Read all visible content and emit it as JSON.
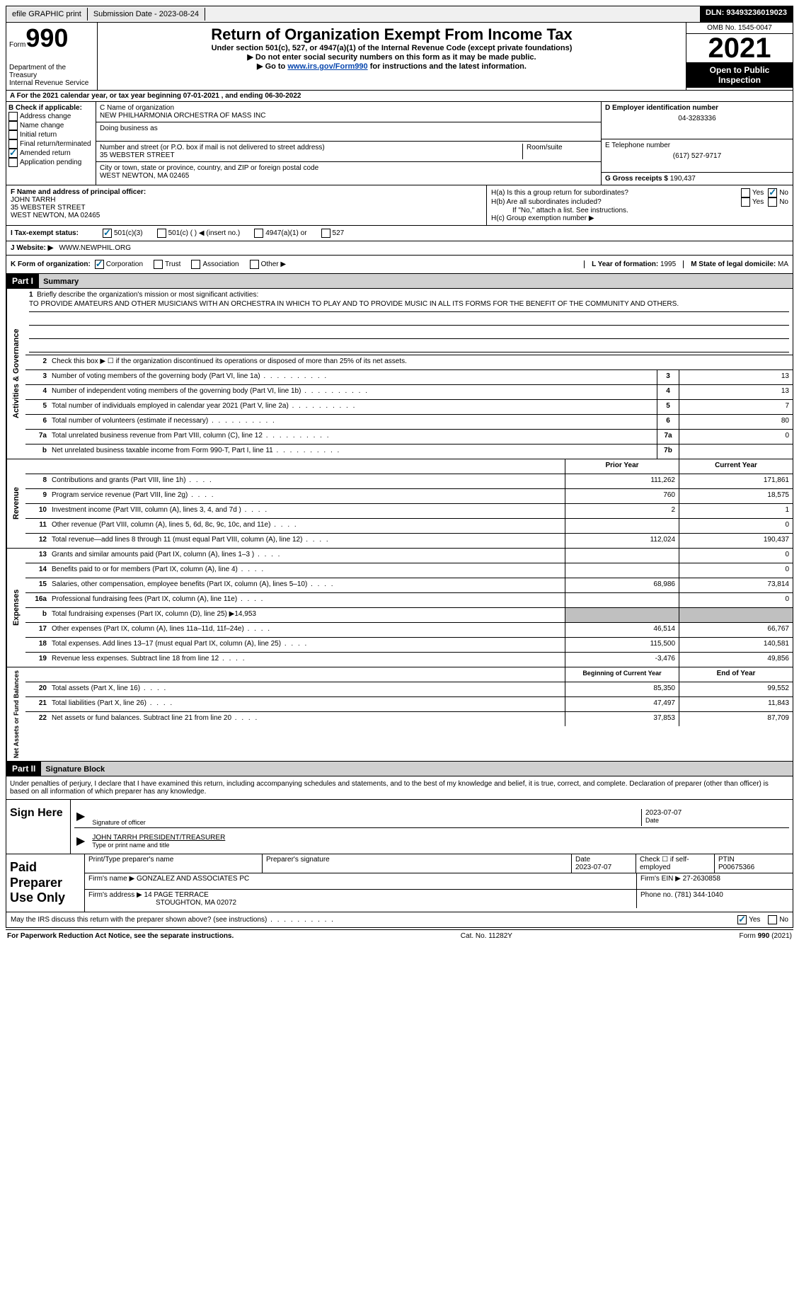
{
  "topbar": {
    "efile": "efile GRAPHIC print",
    "submission_label": "Submission Date - 2023-08-24",
    "dln": "DLN: 93493236019023"
  },
  "header": {
    "form_word": "Form",
    "form_num": "990",
    "dept": "Department of the Treasury",
    "irs": "Internal Revenue Service",
    "title": "Return of Organization Exempt From Income Tax",
    "subtitle": "Under section 501(c), 527, or 4947(a)(1) of the Internal Revenue Code (except private foundations)",
    "note1": "▶ Do not enter social security numbers on this form as it may be made public.",
    "note2_pre": "▶ Go to ",
    "note2_link": "www.irs.gov/Form990",
    "note2_post": " for instructions and the latest information.",
    "omb": "OMB No. 1545-0047",
    "year": "2021",
    "open": "Open to Public Inspection"
  },
  "line_a": "A For the 2021 calendar year, or tax year beginning 07-01-2021    , and ending 06-30-2022",
  "col_b": {
    "header": "B Check if applicable:",
    "items": [
      "Address change",
      "Name change",
      "Initial return",
      "Final return/terminated",
      "Amended return",
      "Application pending"
    ],
    "checked_idx": 4
  },
  "col_c": {
    "name_label": "C Name of organization",
    "name": "NEW PHILHARMONIA ORCHESTRA OF MASS INC",
    "dba_label": "Doing business as",
    "addr_label": "Number and street (or P.O. box if mail is not delivered to street address)",
    "addr": "35 WEBSTER STREET",
    "room_label": "Room/suite",
    "city_label": "City or town, state or province, country, and ZIP or foreign postal code",
    "city": "WEST NEWTON, MA  02465"
  },
  "col_d": {
    "ein_label": "D Employer identification number",
    "ein": "04-3283336",
    "phone_label": "E Telephone number",
    "phone": "(617) 527-9717",
    "gross_label": "G Gross receipts $",
    "gross": "190,437"
  },
  "fgh": {
    "f_label": "F Name and address of principal officer:",
    "f_name": "JOHN TARRH",
    "f_addr1": "35 WEBSTER STREET",
    "f_addr2": "WEST NEWTON, MA  02465",
    "ha": "H(a)  Is this a group return for subordinates?",
    "hb": "H(b)  Are all subordinates included?",
    "hb_note": "If \"No,\" attach a list. See instructions.",
    "hc": "H(c)  Group exemption number ▶",
    "yes": "Yes",
    "no": "No"
  },
  "line_i": {
    "label": "I   Tax-exempt status:",
    "opts": [
      "501(c)(3)",
      "501(c) (  ) ◀ (insert no.)",
      "4947(a)(1) or",
      "527"
    ]
  },
  "line_j": {
    "label": "J   Website: ▶",
    "value": "WWW.NEWPHIL.ORG"
  },
  "line_k": {
    "label": "K Form of organization:",
    "opts": [
      "Corporation",
      "Trust",
      "Association",
      "Other ▶"
    ],
    "l_label": "L Year of formation: ",
    "l_val": "1995",
    "m_label": "M State of legal domicile: ",
    "m_val": "MA"
  },
  "part1": {
    "tag": "Part I",
    "title": "Summary"
  },
  "mission": {
    "num": "1",
    "label": "Briefly describe the organization's mission or most significant activities:",
    "text": "TO PROVIDE AMATEURS AND OTHER MUSICIANS WITH AN ORCHESTRA IN WHICH TO PLAY AND TO PROVIDE MUSIC IN ALL ITS FORMS FOR THE BENEFIT OF THE COMMUNITY AND OTHERS."
  },
  "line2": "Check this box ▶ ☐  if the organization discontinued its operations or disposed of more than 25% of its net assets.",
  "sides": {
    "gov": "Activities & Governance",
    "rev": "Revenue",
    "exp": "Expenses",
    "net": "Net Assets or Fund Balances"
  },
  "gov_lines": [
    {
      "n": "3",
      "d": "Number of voting members of the governing body (Part VI, line 1a)",
      "b": "3",
      "v": "13"
    },
    {
      "n": "4",
      "d": "Number of independent voting members of the governing body (Part VI, line 1b)",
      "b": "4",
      "v": "13"
    },
    {
      "n": "5",
      "d": "Total number of individuals employed in calendar year 2021 (Part V, line 2a)",
      "b": "5",
      "v": "7"
    },
    {
      "n": "6",
      "d": "Total number of volunteers (estimate if necessary)",
      "b": "6",
      "v": "80"
    },
    {
      "n": "7a",
      "d": "Total unrelated business revenue from Part VIII, column (C), line 12",
      "b": "7a",
      "v": "0"
    },
    {
      "n": "b",
      "d": "Net unrelated business taxable income from Form 990-T, Part I, line 11",
      "b": "7b",
      "v": ""
    }
  ],
  "col_headers": {
    "prior": "Prior Year",
    "current": "Current Year"
  },
  "rev_lines": [
    {
      "n": "8",
      "d": "Contributions and grants (Part VIII, line 1h)",
      "p": "111,262",
      "c": "171,861"
    },
    {
      "n": "9",
      "d": "Program service revenue (Part VIII, line 2g)",
      "p": "760",
      "c": "18,575"
    },
    {
      "n": "10",
      "d": "Investment income (Part VIII, column (A), lines 3, 4, and 7d )",
      "p": "2",
      "c": "1"
    },
    {
      "n": "11",
      "d": "Other revenue (Part VIII, column (A), lines 5, 6d, 8c, 9c, 10c, and 11e)",
      "p": "",
      "c": "0"
    },
    {
      "n": "12",
      "d": "Total revenue—add lines 8 through 11 (must equal Part VIII, column (A), line 12)",
      "p": "112,024",
      "c": "190,437"
    }
  ],
  "exp_lines": [
    {
      "n": "13",
      "d": "Grants and similar amounts paid (Part IX, column (A), lines 1–3 )",
      "p": "",
      "c": "0"
    },
    {
      "n": "14",
      "d": "Benefits paid to or for members (Part IX, column (A), line 4)",
      "p": "",
      "c": "0"
    },
    {
      "n": "15",
      "d": "Salaries, other compensation, employee benefits (Part IX, column (A), lines 5–10)",
      "p": "68,986",
      "c": "73,814"
    },
    {
      "n": "16a",
      "d": "Professional fundraising fees (Part IX, column (A), line 11e)",
      "p": "",
      "c": "0"
    },
    {
      "n": "b",
      "d": "Total fundraising expenses (Part IX, column (D), line 25) ▶14,953",
      "p": "grey",
      "c": "grey"
    },
    {
      "n": "17",
      "d": "Other expenses (Part IX, column (A), lines 11a–11d, 11f–24e)",
      "p": "46,514",
      "c": "66,767"
    },
    {
      "n": "18",
      "d": "Total expenses. Add lines 13–17 (must equal Part IX, column (A), line 25)",
      "p": "115,500",
      "c": "140,581"
    },
    {
      "n": "19",
      "d": "Revenue less expenses. Subtract line 18 from line 12",
      "p": "-3,476",
      "c": "49,856"
    }
  ],
  "net_headers": {
    "begin": "Beginning of Current Year",
    "end": "End of Year"
  },
  "net_lines": [
    {
      "n": "20",
      "d": "Total assets (Part X, line 16)",
      "p": "85,350",
      "c": "99,552"
    },
    {
      "n": "21",
      "d": "Total liabilities (Part X, line 26)",
      "p": "47,497",
      "c": "11,843"
    },
    {
      "n": "22",
      "d": "Net assets or fund balances. Subtract line 21 from line 20",
      "p": "37,853",
      "c": "87,709"
    }
  ],
  "part2": {
    "tag": "Part II",
    "title": "Signature Block"
  },
  "penal": "Under penalties of perjury, I declare that I have examined this return, including accompanying schedules and statements, and to the best of my knowledge and belief, it is true, correct, and complete. Declaration of preparer (other than officer) is based on all information of which preparer has any knowledge.",
  "sign": {
    "here": "Sign Here",
    "sig_label": "Signature of officer",
    "date_label": "Date",
    "date": "2023-07-07",
    "name": "JOHN TARRH PRESIDENT/TREASURER",
    "name_label": "Type or print name and title"
  },
  "prep": {
    "title": "Paid Preparer Use Only",
    "h1": "Print/Type preparer's name",
    "h2": "Preparer's signature",
    "h3": "Date",
    "h3v": "2023-07-07",
    "h4": "Check ☐ if self-employed",
    "h5": "PTIN",
    "h5v": "P00675366",
    "firm_label": "Firm's name     ▶",
    "firm": "GONZALEZ AND ASSOCIATES PC",
    "ein_label": "Firm's EIN ▶",
    "ein": "27-2630858",
    "addr_label": "Firm's address ▶",
    "addr1": "14 PAGE TERRACE",
    "addr2": "STOUGHTON, MA  02072",
    "phone_label": "Phone no.",
    "phone": "(781) 344-1040"
  },
  "discuss": "May the IRS discuss this return with the preparer shown above? (see instructions)",
  "footer": {
    "left": "For Paperwork Reduction Act Notice, see the separate instructions.",
    "mid": "Cat. No. 11282Y",
    "right": "Form 990 (2021)"
  }
}
